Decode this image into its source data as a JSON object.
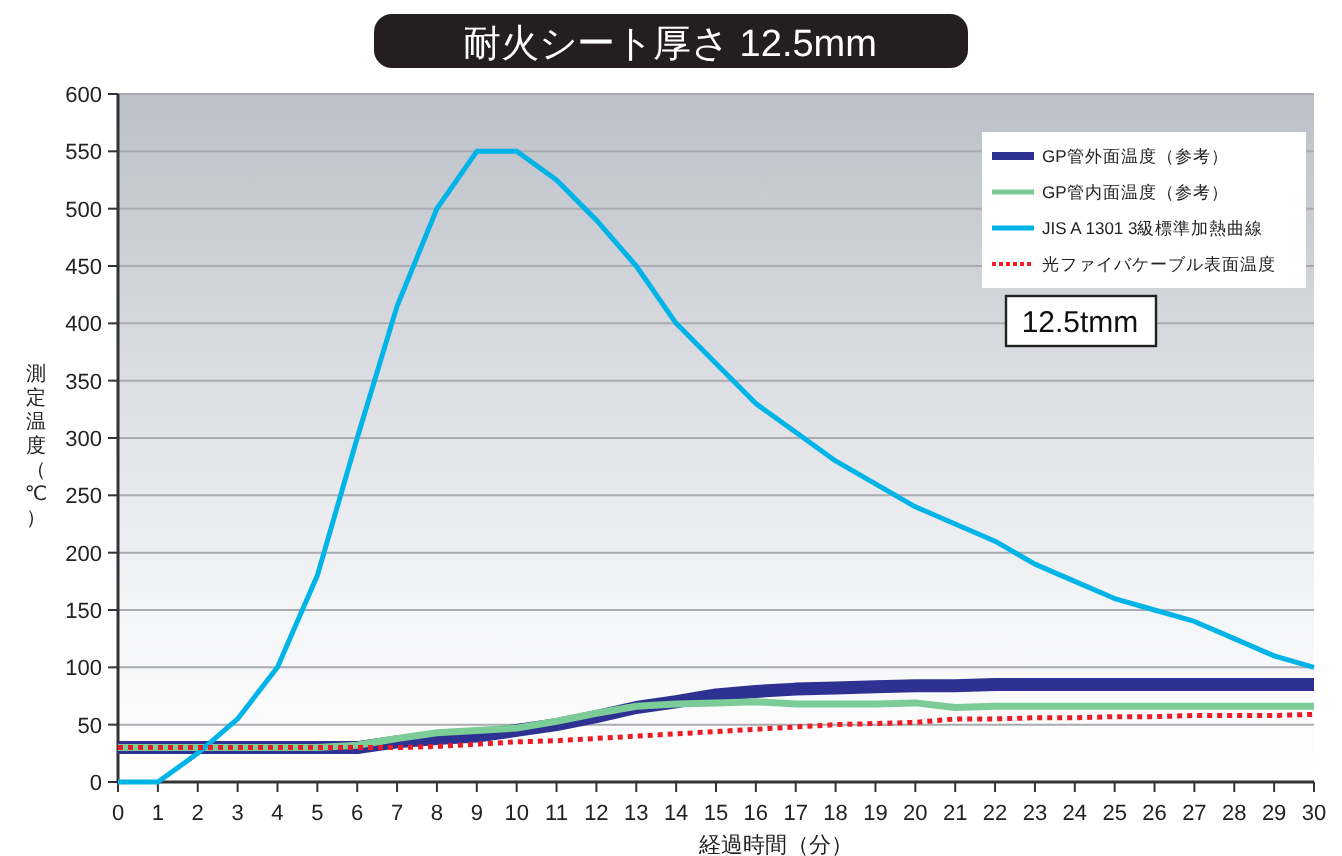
{
  "chart_data": {
    "type": "line",
    "title": "耐火シート厚さ 12.5mm",
    "xlabel": "経過時間（分）",
    "ylabel": "測定温度（℃）",
    "annotations": [
      "12.5tmm"
    ],
    "x": [
      0,
      1,
      2,
      3,
      4,
      5,
      6,
      7,
      8,
      9,
      10,
      11,
      12,
      13,
      14,
      15,
      16,
      17,
      18,
      19,
      20,
      21,
      22,
      23,
      24,
      25,
      26,
      27,
      28,
      29,
      30
    ],
    "series": [
      {
        "name": "GP管外面温度（参考）",
        "color": "#2e3192",
        "line_style": "solid",
        "values": [
          30,
          30,
          30,
          30,
          30,
          30,
          30,
          35,
          38,
          40,
          45,
          50,
          57,
          65,
          70,
          76,
          79,
          81,
          82,
          83,
          84,
          84,
          85,
          85,
          85,
          85,
          85,
          85,
          85,
          85,
          85
        ]
      },
      {
        "name": "GP管内面温度（参考）",
        "color": "#7ccc98",
        "line_style": "solid",
        "values": [
          30,
          30,
          30,
          30,
          30,
          30,
          32,
          38,
          43,
          45,
          47,
          53,
          60,
          66,
          68,
          69,
          70,
          68,
          68,
          68,
          69,
          65,
          66,
          66,
          66,
          66,
          66,
          66,
          66,
          66,
          66
        ]
      },
      {
        "name": "JIS A 1301 3級標準加熱曲線",
        "color": "#00b4e8",
        "line_style": "solid",
        "values": [
          0,
          0,
          25,
          55,
          100,
          180,
          300,
          415,
          500,
          550,
          550,
          525,
          490,
          450,
          400,
          365,
          330,
          305,
          280,
          260,
          240,
          225,
          210,
          190,
          175,
          160,
          150,
          140,
          125,
          110,
          100
        ]
      },
      {
        "name": "光ファイバケーブル表面温度",
        "color": "#ed1c24",
        "line_style": "dotted",
        "values": [
          30,
          30,
          30,
          30,
          30,
          30,
          30,
          30,
          31,
          33,
          35,
          36,
          38,
          40,
          42,
          44,
          46,
          48,
          50,
          51,
          52,
          55,
          55,
          56,
          56,
          57,
          57,
          58,
          58,
          58,
          59
        ]
      }
    ],
    "xlim": [
      0,
      30
    ],
    "xticks": [
      0,
      1,
      2,
      3,
      4,
      5,
      6,
      7,
      8,
      9,
      10,
      11,
      12,
      13,
      14,
      15,
      16,
      17,
      18,
      19,
      20,
      21,
      22,
      23,
      24,
      25,
      26,
      27,
      28,
      29,
      30
    ],
    "ylim": [
      0,
      600
    ],
    "yticks": [
      0,
      50,
      100,
      150,
      200,
      250,
      300,
      350,
      400,
      450,
      500,
      550,
      600
    ],
    "grid": "y",
    "legend": "top right"
  }
}
